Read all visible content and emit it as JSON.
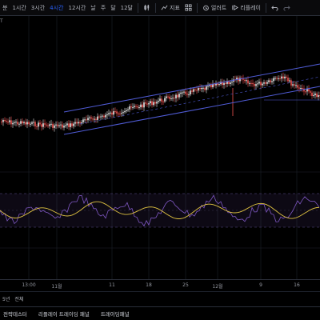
{
  "toolbar": {
    "timeframes": [
      "분",
      "1시간",
      "3시간",
      "4시간",
      "12시간",
      "날",
      "주",
      "달",
      "12달"
    ],
    "active_timeframe_index": 3,
    "indicator_label": "지표",
    "alert_label": "얼러트",
    "replay_label": "리플레이"
  },
  "chart": {
    "symbol_fragment": "T"
  },
  "xaxis": {
    "labels": [
      "13:00",
      "11월",
      "11",
      "18",
      "25",
      "12월",
      "9",
      "16"
    ]
  },
  "range_bar": {
    "items": [
      "5년",
      "전체"
    ]
  },
  "bottom_tabs": {
    "items": [
      "전략테스터",
      "리플레이 트레이딩 패널",
      "트레이딩패널"
    ]
  },
  "colors": {
    "accent": "#2962ff",
    "channel": "#4f5bd5",
    "candle_up": "#e9e9e9",
    "candle_down": "#ef5350",
    "rsi_line": "#7e57c2",
    "rsi_ma": "#e0c341"
  }
}
